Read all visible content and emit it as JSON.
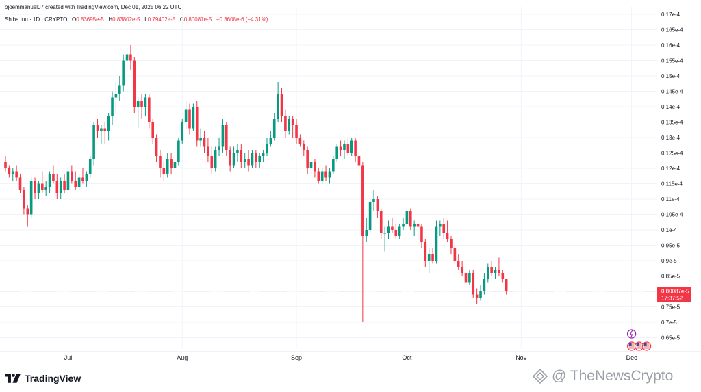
{
  "header": {
    "attribution": "ojoemmanuel07 created with TradingView.com, Dec 01, 2025 06:22 UTC"
  },
  "legend": {
    "symbol": "Shiba Inu · 1D · CRYPTO",
    "o_label": "O",
    "o_value": "0.83695e-5",
    "h_label": "H",
    "h_value": "0.83802e-5",
    "l_label": "L",
    "l_value": "0.79402e-5",
    "c_label": "C",
    "c_value": "0.80087e-5",
    "change": "−0.3608e-6 (−4.31%)"
  },
  "price_tag": {
    "price": "0.80087e-5",
    "countdown": "17:37:52"
  },
  "brand": {
    "name": "TradingView"
  },
  "watermark": {
    "text": "@ TheNewsCrypto"
  },
  "colors": {
    "up": "#089981",
    "down": "#f23645",
    "grid": "#f0f3fa",
    "axis_text": "#131722"
  },
  "chart_data": {
    "type": "candlestick",
    "title": "Shiba Inu · 1D · CRYPTO",
    "y_tick_labels": [
      "0.65e-5",
      "0.7e-5",
      "0.75e-5",
      "0.8e-5",
      "0.85e-5",
      "0.9e-5",
      "0.95e-5",
      "0.1e-4",
      "0.105e-4",
      "0.11e-4",
      "0.115e-4",
      "0.12e-4",
      "0.125e-4",
      "0.13e-4",
      "0.135e-4",
      "0.14e-4",
      "0.145e-4",
      "0.15e-4",
      "0.155e-4",
      "0.16e-4",
      "0.165e-4",
      "0.17e-4"
    ],
    "y_tick_values": [
      0.65,
      0.7,
      0.75,
      0.8,
      0.85,
      0.9,
      0.95,
      1.0,
      1.05,
      1.1,
      1.15,
      1.2,
      1.25,
      1.3,
      1.35,
      1.4,
      1.45,
      1.5,
      1.55,
      1.6,
      1.65,
      1.7
    ],
    "ylim": [
      0.6,
      1.7
    ],
    "y_units": "e-5",
    "x_tick_labels": [
      "Jul",
      "Aug",
      "Sep",
      "Oct",
      "Nov",
      "Dec"
    ],
    "x_tick_index": [
      17,
      48,
      79,
      109,
      140,
      170
    ],
    "last_price": 0.80087,
    "grid": true,
    "candles": [
      [
        1.22,
        1.24,
        1.19,
        1.2
      ],
      [
        1.2,
        1.21,
        1.17,
        1.18
      ],
      [
        1.18,
        1.2,
        1.16,
        1.19
      ],
      [
        1.19,
        1.21,
        1.16,
        1.17
      ],
      [
        1.17,
        1.18,
        1.12,
        1.13
      ],
      [
        1.13,
        1.14,
        1.05,
        1.07
      ],
      [
        1.07,
        1.08,
        1.01,
        1.05
      ],
      [
        1.05,
        1.17,
        1.04,
        1.16
      ],
      [
        1.16,
        1.17,
        1.1,
        1.12
      ],
      [
        1.12,
        1.16,
        1.1,
        1.15
      ],
      [
        1.15,
        1.19,
        1.12,
        1.13
      ],
      [
        1.13,
        1.16,
        1.11,
        1.14
      ],
      [
        1.14,
        1.19,
        1.12,
        1.18
      ],
      [
        1.18,
        1.21,
        1.15,
        1.16
      ],
      [
        1.16,
        1.18,
        1.1,
        1.12
      ],
      [
        1.12,
        1.17,
        1.1,
        1.16
      ],
      [
        1.16,
        1.18,
        1.12,
        1.13
      ],
      [
        1.13,
        1.2,
        1.12,
        1.19
      ],
      [
        1.19,
        1.21,
        1.15,
        1.16
      ],
      [
        1.16,
        1.19,
        1.13,
        1.14
      ],
      [
        1.14,
        1.18,
        1.13,
        1.17
      ],
      [
        1.17,
        1.2,
        1.15,
        1.16
      ],
      [
        1.16,
        1.19,
        1.14,
        1.18
      ],
      [
        1.18,
        1.24,
        1.17,
        1.23
      ],
      [
        1.23,
        1.35,
        1.21,
        1.34
      ],
      [
        1.34,
        1.36,
        1.3,
        1.32
      ],
      [
        1.32,
        1.34,
        1.28,
        1.33
      ],
      [
        1.33,
        1.35,
        1.28,
        1.32
      ],
      [
        1.32,
        1.38,
        1.29,
        1.37
      ],
      [
        1.37,
        1.45,
        1.34,
        1.43
      ],
      [
        1.43,
        1.48,
        1.38,
        1.44
      ],
      [
        1.44,
        1.5,
        1.42,
        1.47
      ],
      [
        1.47,
        1.57,
        1.45,
        1.55
      ],
      [
        1.55,
        1.59,
        1.51,
        1.57
      ],
      [
        1.57,
        1.6,
        1.52,
        1.55
      ],
      [
        1.55,
        1.56,
        1.38,
        1.4
      ],
      [
        1.4,
        1.43,
        1.33,
        1.42
      ],
      [
        1.42,
        1.44,
        1.36,
        1.4
      ],
      [
        1.4,
        1.44,
        1.37,
        1.43
      ],
      [
        1.43,
        1.44,
        1.33,
        1.35
      ],
      [
        1.35,
        1.36,
        1.28,
        1.3
      ],
      [
        1.3,
        1.31,
        1.22,
        1.24
      ],
      [
        1.24,
        1.26,
        1.17,
        1.2
      ],
      [
        1.2,
        1.22,
        1.16,
        1.18
      ],
      [
        1.18,
        1.25,
        1.17,
        1.23
      ],
      [
        1.23,
        1.25,
        1.18,
        1.2
      ],
      [
        1.2,
        1.24,
        1.18,
        1.22
      ],
      [
        1.22,
        1.3,
        1.21,
        1.29
      ],
      [
        1.29,
        1.36,
        1.28,
        1.35
      ],
      [
        1.35,
        1.42,
        1.33,
        1.39
      ],
      [
        1.39,
        1.41,
        1.31,
        1.33
      ],
      [
        1.33,
        1.41,
        1.32,
        1.4
      ],
      [
        1.4,
        1.42,
        1.27,
        1.29
      ],
      [
        1.29,
        1.33,
        1.27,
        1.3
      ],
      [
        1.3,
        1.32,
        1.25,
        1.27
      ],
      [
        1.27,
        1.3,
        1.22,
        1.24
      ],
      [
        1.24,
        1.27,
        1.18,
        1.2
      ],
      [
        1.2,
        1.27,
        1.19,
        1.26
      ],
      [
        1.26,
        1.3,
        1.24,
        1.27
      ],
      [
        1.27,
        1.36,
        1.25,
        1.34
      ],
      [
        1.34,
        1.35,
        1.24,
        1.26
      ],
      [
        1.26,
        1.27,
        1.19,
        1.21
      ],
      [
        1.21,
        1.27,
        1.2,
        1.25
      ],
      [
        1.25,
        1.28,
        1.22,
        1.26
      ],
      [
        1.26,
        1.28,
        1.2,
        1.22
      ],
      [
        1.22,
        1.25,
        1.2,
        1.23
      ],
      [
        1.23,
        1.26,
        1.19,
        1.21
      ],
      [
        1.21,
        1.26,
        1.2,
        1.25
      ],
      [
        1.25,
        1.26,
        1.2,
        1.22
      ],
      [
        1.22,
        1.25,
        1.2,
        1.24
      ],
      [
        1.24,
        1.26,
        1.22,
        1.25
      ],
      [
        1.25,
        1.3,
        1.24,
        1.28
      ],
      [
        1.28,
        1.32,
        1.27,
        1.3
      ],
      [
        1.3,
        1.38,
        1.29,
        1.36
      ],
      [
        1.36,
        1.48,
        1.35,
        1.44
      ],
      [
        1.44,
        1.46,
        1.35,
        1.37
      ],
      [
        1.37,
        1.39,
        1.3,
        1.32
      ],
      [
        1.32,
        1.37,
        1.31,
        1.36
      ],
      [
        1.36,
        1.37,
        1.3,
        1.34
      ],
      [
        1.34,
        1.36,
        1.28,
        1.3
      ],
      [
        1.3,
        1.31,
        1.27,
        1.28
      ],
      [
        1.28,
        1.29,
        1.24,
        1.26
      ],
      [
        1.26,
        1.27,
        1.18,
        1.2
      ],
      [
        1.2,
        1.23,
        1.18,
        1.22
      ],
      [
        1.22,
        1.23,
        1.17,
        1.19
      ],
      [
        1.19,
        1.2,
        1.15,
        1.16
      ],
      [
        1.16,
        1.2,
        1.15,
        1.19
      ],
      [
        1.19,
        1.21,
        1.16,
        1.17
      ],
      [
        1.17,
        1.2,
        1.15,
        1.19
      ],
      [
        1.19,
        1.24,
        1.18,
        1.23
      ],
      [
        1.23,
        1.28,
        1.22,
        1.27
      ],
      [
        1.27,
        1.29,
        1.24,
        1.26
      ],
      [
        1.26,
        1.29,
        1.23,
        1.28
      ],
      [
        1.28,
        1.3,
        1.24,
        1.25
      ],
      [
        1.25,
        1.3,
        1.24,
        1.29
      ],
      [
        1.29,
        1.3,
        1.22,
        1.24
      ],
      [
        1.24,
        1.25,
        1.2,
        1.21
      ],
      [
        1.21,
        1.22,
        0.7,
        0.98
      ],
      [
        0.98,
        1.04,
        0.96,
        1.0
      ],
      [
        1.0,
        1.1,
        0.99,
        1.09
      ],
      [
        1.09,
        1.13,
        1.06,
        1.1
      ],
      [
        1.1,
        1.11,
        1.04,
        1.06
      ],
      [
        1.06,
        1.07,
        0.97,
        0.99
      ],
      [
        0.99,
        1.01,
        0.93,
        0.99
      ],
      [
        0.99,
        1.03,
        0.97,
        1.01
      ],
      [
        1.01,
        1.04,
        0.99,
        1.0
      ],
      [
        1.0,
        1.02,
        0.97,
        0.98
      ],
      [
        0.98,
        1.02,
        0.97,
        1.01
      ],
      [
        1.01,
        1.04,
        1.0,
        1.02
      ],
      [
        1.02,
        1.07,
        1.01,
        1.06
      ],
      [
        1.06,
        1.07,
        1.0,
        1.01
      ],
      [
        1.01,
        1.03,
        0.98,
        1.02
      ],
      [
        1.02,
        1.03,
        0.97,
        1.01
      ],
      [
        1.01,
        1.02,
        0.94,
        0.96
      ],
      [
        0.96,
        0.97,
        0.88,
        0.9
      ],
      [
        0.9,
        0.94,
        0.86,
        0.92
      ],
      [
        0.92,
        0.94,
        0.89,
        0.9
      ],
      [
        0.9,
        1.03,
        0.89,
        1.01
      ],
      [
        1.01,
        1.03,
        0.98,
        1.02
      ],
      [
        1.02,
        1.04,
        0.97,
        0.99
      ],
      [
        0.99,
        1.03,
        0.96,
        0.97
      ],
      [
        0.97,
        0.98,
        0.92,
        0.94
      ],
      [
        0.94,
        0.95,
        0.89,
        0.9
      ],
      [
        0.9,
        0.92,
        0.87,
        0.88
      ],
      [
        0.88,
        0.9,
        0.85,
        0.86
      ],
      [
        0.86,
        0.88,
        0.82,
        0.83
      ],
      [
        0.83,
        0.87,
        0.82,
        0.86
      ],
      [
        0.86,
        0.87,
        0.78,
        0.79
      ],
      [
        0.79,
        0.81,
        0.76,
        0.78
      ],
      [
        0.78,
        0.82,
        0.77,
        0.8
      ],
      [
        0.8,
        0.86,
        0.79,
        0.84
      ],
      [
        0.84,
        0.89,
        0.83,
        0.88
      ],
      [
        0.88,
        0.9,
        0.85,
        0.86
      ],
      [
        0.86,
        0.88,
        0.84,
        0.87
      ],
      [
        0.87,
        0.91,
        0.85,
        0.86
      ],
      [
        0.86,
        0.87,
        0.83,
        0.84
      ],
      [
        0.84,
        0.84,
        0.79,
        0.8
      ]
    ]
  }
}
